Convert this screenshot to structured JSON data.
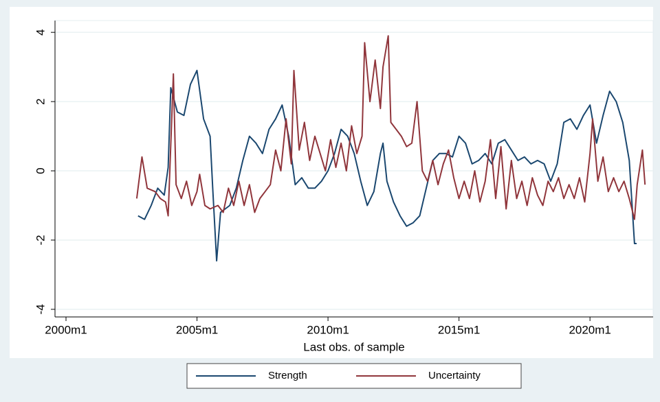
{
  "chart_data": {
    "type": "line",
    "x_label": "Last obs. of sample",
    "xlim": [
      1999.58,
      2022.41
    ],
    "ylim": [
      -4.22,
      4.34
    ],
    "xticks": [
      {
        "value": 2000,
        "label": "2000m1"
      },
      {
        "value": 2005,
        "label": "2005m1"
      },
      {
        "value": 2010,
        "label": "2010m1"
      },
      {
        "value": 2015,
        "label": "2015m1"
      },
      {
        "value": 2020,
        "label": "2020m1"
      }
    ],
    "yticks": [
      -4,
      -2,
      0,
      2,
      4
    ],
    "grid": true,
    "legend": "bottom",
    "series": [
      {
        "name": "Strength",
        "color": "#1a476f",
        "x": [
          2002.75,
          2003.0,
          2003.25,
          2003.5,
          2003.75,
          2003.9,
          2004.0,
          2004.25,
          2004.5,
          2004.75,
          2005.0,
          2005.25,
          2005.5,
          2005.6,
          2005.75,
          2005.9,
          2006.25,
          2006.5,
          2006.75,
          2007.0,
          2007.25,
          2007.5,
          2007.75,
          2008.0,
          2008.25,
          2008.5,
          2008.75,
          2009.0,
          2009.25,
          2009.5,
          2009.75,
          2010.0,
          2010.25,
          2010.5,
          2010.75,
          2011.0,
          2011.25,
          2011.5,
          2011.75,
          2012.0,
          2012.1,
          2012.25,
          2012.5,
          2012.75,
          2013.0,
          2013.25,
          2013.5,
          2013.75,
          2014.0,
          2014.25,
          2014.5,
          2014.75,
          2015.0,
          2015.25,
          2015.5,
          2015.75,
          2016.0,
          2016.25,
          2016.5,
          2016.75,
          2017.0,
          2017.25,
          2017.5,
          2017.75,
          2018.0,
          2018.25,
          2018.5,
          2018.75,
          2019.0,
          2019.25,
          2019.5,
          2019.75,
          2020.0,
          2020.25,
          2020.5,
          2020.75,
          2021.0,
          2021.25,
          2021.5,
          2021.6,
          2021.7,
          2021.78
        ],
        "values": [
          -1.3,
          -1.4,
          -1.0,
          -0.5,
          -0.7,
          0.1,
          2.4,
          1.7,
          1.6,
          2.5,
          2.9,
          1.5,
          1.0,
          -0.5,
          -2.6,
          -1.2,
          -1.0,
          -0.5,
          0.3,
          1.0,
          0.8,
          0.5,
          1.2,
          1.5,
          1.9,
          1.0,
          -0.4,
          -0.2,
          -0.5,
          -0.5,
          -0.3,
          0.0,
          0.5,
          1.2,
          1.0,
          0.5,
          -0.3,
          -1.0,
          -0.6,
          0.5,
          0.8,
          -0.3,
          -0.9,
          -1.3,
          -1.6,
          -1.5,
          -1.3,
          -0.5,
          0.3,
          0.5,
          0.5,
          0.4,
          1.0,
          0.8,
          0.2,
          0.3,
          0.5,
          0.2,
          0.8,
          0.9,
          0.6,
          0.3,
          0.4,
          0.2,
          0.3,
          0.2,
          -0.3,
          0.2,
          1.4,
          1.5,
          1.2,
          1.6,
          1.9,
          0.8,
          1.6,
          2.3,
          2.0,
          1.4,
          0.3,
          -0.9,
          -2.1,
          -2.1
        ]
      },
      {
        "name": "Uncertainty",
        "color": "#90353b",
        "x": [
          2002.7,
          2002.9,
          2003.1,
          2003.4,
          2003.6,
          2003.8,
          2003.9,
          2004.1,
          2004.2,
          2004.4,
          2004.6,
          2004.8,
          2005.0,
          2005.1,
          2005.3,
          2005.5,
          2005.8,
          2006.0,
          2006.2,
          2006.4,
          2006.6,
          2006.8,
          2007.0,
          2007.2,
          2007.4,
          2007.6,
          2007.8,
          2008.0,
          2008.2,
          2008.4,
          2008.6,
          2008.7,
          2008.9,
          2009.1,
          2009.3,
          2009.5,
          2009.7,
          2009.9,
          2010.1,
          2010.3,
          2010.5,
          2010.7,
          2010.9,
          2011.1,
          2011.3,
          2011.4,
          2011.6,
          2011.8,
          2012.0,
          2012.1,
          2012.3,
          2012.4,
          2012.6,
          2012.8,
          2013.0,
          2013.2,
          2013.4,
          2013.6,
          2013.8,
          2014.0,
          2014.2,
          2014.4,
          2014.6,
          2014.8,
          2015.0,
          2015.2,
          2015.4,
          2015.6,
          2015.8,
          2016.0,
          2016.2,
          2016.4,
          2016.6,
          2016.8,
          2017.0,
          2017.2,
          2017.4,
          2017.6,
          2017.8,
          2018.0,
          2018.2,
          2018.4,
          2018.6,
          2018.8,
          2019.0,
          2019.2,
          2019.4,
          2019.6,
          2019.8,
          2020.0,
          2020.1,
          2020.3,
          2020.5,
          2020.7,
          2020.9,
          2021.1,
          2021.3,
          2021.5,
          2021.7,
          2021.8,
          2022.0,
          2022.1
        ],
        "values": [
          -0.8,
          0.4,
          -0.5,
          -0.6,
          -0.8,
          -0.9,
          -1.3,
          2.8,
          -0.4,
          -0.8,
          -0.3,
          -1.0,
          -0.6,
          -0.1,
          -1.0,
          -1.1,
          -1.0,
          -1.2,
          -0.5,
          -1.0,
          -0.3,
          -1.0,
          -0.4,
          -1.2,
          -0.8,
          -0.6,
          -0.4,
          0.6,
          0.0,
          1.5,
          0.2,
          2.9,
          0.6,
          1.4,
          0.3,
          1.0,
          0.5,
          0.0,
          0.9,
          0.1,
          0.8,
          0.0,
          1.3,
          0.5,
          1.0,
          3.7,
          2.0,
          3.2,
          1.8,
          3.0,
          3.9,
          1.4,
          1.2,
          1.0,
          0.7,
          0.8,
          2.0,
          0.0,
          -0.3,
          0.3,
          -0.4,
          0.2,
          0.6,
          -0.2,
          -0.8,
          -0.3,
          -0.8,
          0.0,
          -0.9,
          -0.3,
          0.9,
          -0.8,
          0.7,
          -1.1,
          0.3,
          -0.8,
          -0.3,
          -1.0,
          -0.2,
          -0.7,
          -1.0,
          -0.3,
          -0.6,
          -0.2,
          -0.8,
          -0.4,
          -0.8,
          -0.2,
          -0.9,
          0.5,
          1.5,
          -0.3,
          0.4,
          -0.6,
          -0.2,
          -0.6,
          -0.3,
          -0.8,
          -1.4,
          -0.4,
          0.6,
          -0.4
        ]
      }
    ]
  }
}
